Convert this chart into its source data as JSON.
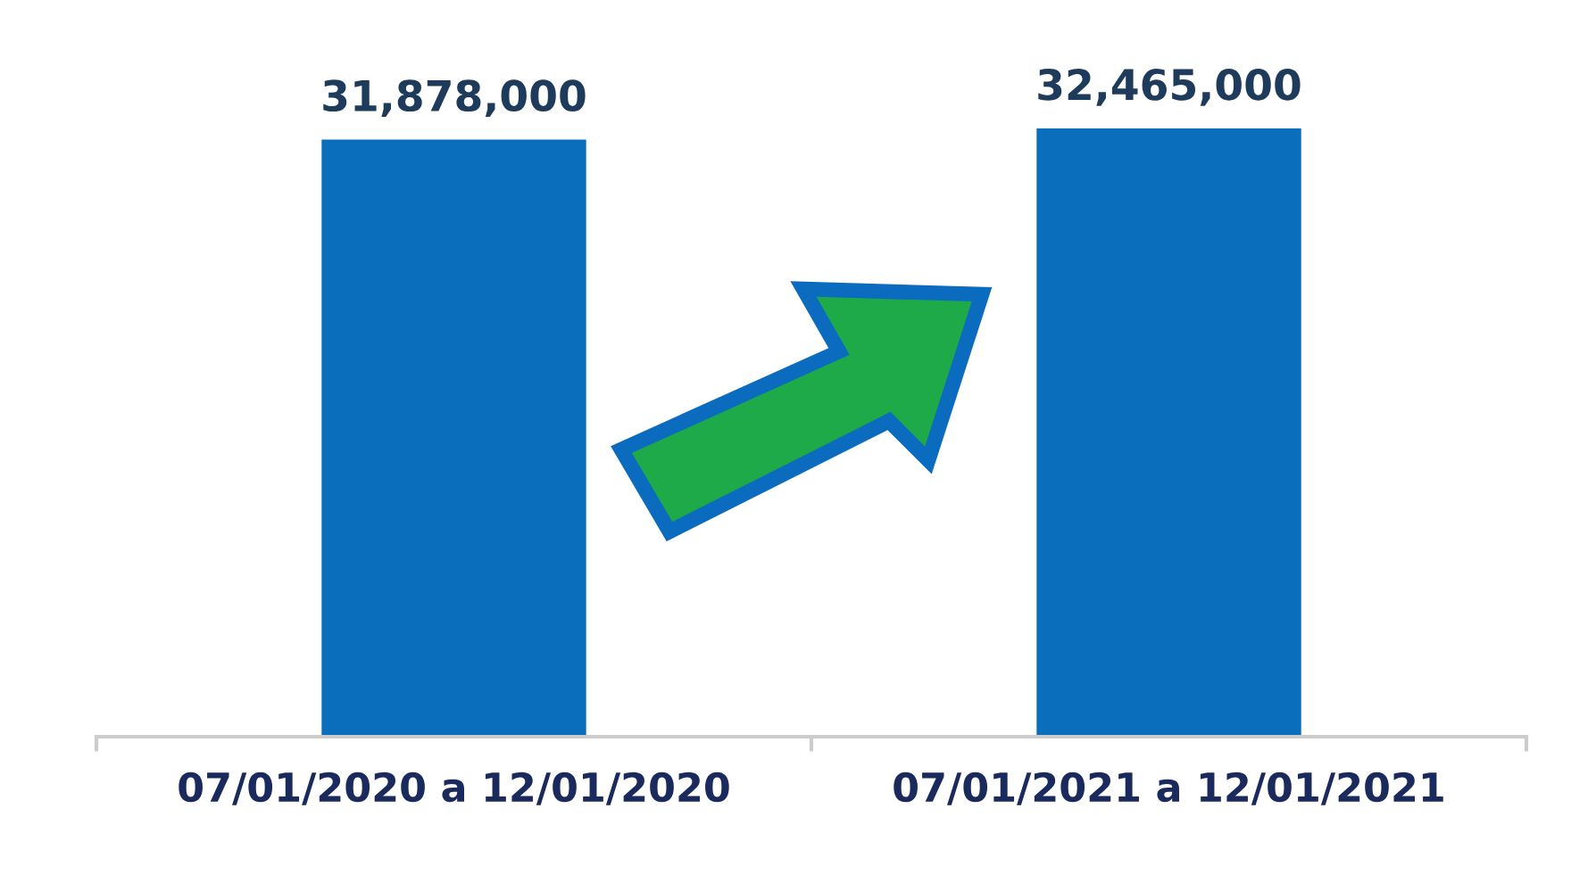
{
  "chart_data": {
    "type": "bar",
    "categories": [
      "07/01/2020 a 12/01/2020",
      "07/01/2021 a 12/01/2021"
    ],
    "values": [
      31878000,
      32465000
    ],
    "color": "#0a6ebd",
    "data_labels": true,
    "value_labels": [
      "31,878,000",
      "32,465,000"
    ],
    "tick_labels": "x",
    "grid": false,
    "legend": false
  }
}
